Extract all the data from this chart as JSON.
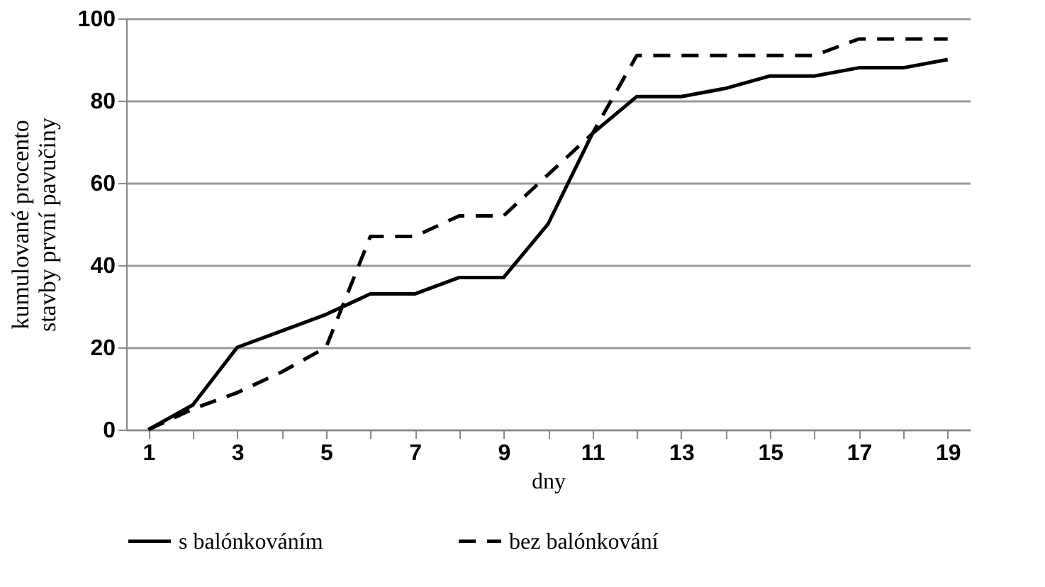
{
  "chart_data": {
    "type": "line",
    "xlabel": "dny",
    "ylabel": "kumulované procento\nstavby první pavučiny",
    "x": [
      1,
      2,
      3,
      4,
      5,
      6,
      7,
      8,
      9,
      10,
      11,
      12,
      13,
      14,
      15,
      16,
      17,
      18,
      19
    ],
    "series": [
      {
        "name": "s balónkováním",
        "color": "#000000",
        "line_style": "solid",
        "values": [
          0,
          6,
          20,
          24,
          28,
          33,
          33,
          37,
          37,
          50,
          72,
          81,
          81,
          83,
          86,
          86,
          88,
          88,
          90
        ]
      },
      {
        "name": "bez balónkování",
        "color": "#000000",
        "line_style": "dashed",
        "values": [
          0,
          5,
          9,
          14,
          20,
          47,
          47,
          52,
          52,
          62,
          72,
          91,
          91,
          91,
          91,
          91,
          95,
          95,
          95
        ]
      }
    ],
    "xlim": [
      0.5,
      19.5
    ],
    "xticks": [
      1,
      {
        "value": 2,
        "label": null
      },
      3,
      {
        "value": 4,
        "label": null
      },
      5,
      {
        "value": 6,
        "label": null
      },
      7,
      {
        "value": 8,
        "label": null
      },
      9,
      {
        "value": 10,
        "label": null
      },
      11,
      {
        "value": 12,
        "label": null
      },
      13,
      {
        "value": 14,
        "label": null
      },
      15,
      {
        "value": 16,
        "label": null
      },
      17,
      {
        "value": 18,
        "label": null
      },
      19
    ],
    "ylim": [
      0,
      100
    ],
    "yticks": [
      0,
      20,
      40,
      60,
      80,
      100
    ],
    "grid": "y",
    "legend": "bottom",
    "marker": "none"
  }
}
